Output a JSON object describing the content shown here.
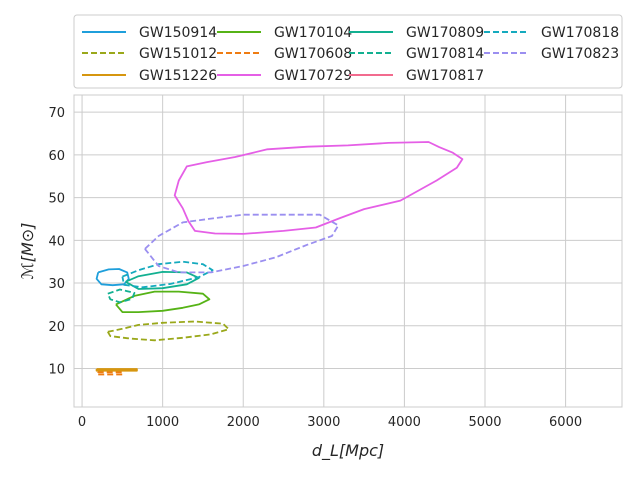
{
  "chart_data": {
    "type": "line",
    "title": "",
    "xlabel": "d_L[Mpc]",
    "ylabel": "ℳ[M⊙]",
    "xlim": [
      -100,
      6700
    ],
    "ylim": [
      1,
      74
    ],
    "xticks": [
      0,
      1000,
      2000,
      3000,
      4000,
      5000,
      6000
    ],
    "yticks": [
      10,
      20,
      30,
      40,
      50,
      60,
      70
    ],
    "grid": true,
    "legend_placement": "top-center",
    "series": [
      {
        "name": "GW150914",
        "color": "#1f9fdb",
        "dash": false,
        "points": [
          [
            200,
            32.5
          ],
          [
            330,
            33.2
          ],
          [
            460,
            33.3
          ],
          [
            560,
            32.5
          ],
          [
            580,
            31
          ],
          [
            520,
            29.7
          ],
          [
            380,
            29.5
          ],
          [
            240,
            29.7
          ],
          [
            180,
            31
          ],
          [
            200,
            32.5
          ]
        ]
      },
      {
        "name": "GW151012",
        "color": "#9aa81a",
        "dash": true,
        "points": [
          [
            320,
            18.6
          ],
          [
            500,
            19.3
          ],
          [
            700,
            20.2
          ],
          [
            1000,
            20.7
          ],
          [
            1400,
            21
          ],
          [
            1750,
            20.5
          ],
          [
            1820,
            19.2
          ],
          [
            1600,
            18
          ],
          [
            1250,
            17.2
          ],
          [
            900,
            16.6
          ],
          [
            600,
            17
          ],
          [
            350,
            17.6
          ],
          [
            320,
            18.6
          ]
        ]
      },
      {
        "name": "GW151226",
        "color": "#d6960f",
        "dash": false,
        "points": [
          [
            180,
            9.9
          ],
          [
            680,
            9.9
          ],
          [
            680,
            9.5
          ],
          [
            180,
            9.5
          ],
          [
            180,
            9.9
          ]
        ]
      },
      {
        "name": "GW170104",
        "color": "#56b316",
        "dash": false,
        "points": [
          [
            420,
            25
          ],
          [
            650,
            27
          ],
          [
            900,
            28
          ],
          [
            1200,
            28
          ],
          [
            1500,
            27.5
          ],
          [
            1580,
            26.2
          ],
          [
            1450,
            25
          ],
          [
            1250,
            24.2
          ],
          [
            1000,
            23.5
          ],
          [
            700,
            23.2
          ],
          [
            500,
            23.2
          ],
          [
            420,
            25
          ]
        ]
      },
      {
        "name": "GW170608",
        "color": "#ef7c12",
        "dash": true,
        "points": [
          [
            200,
            8.6
          ],
          [
            500,
            8.6
          ],
          [
            500,
            9.1
          ],
          [
            200,
            9.1
          ],
          [
            200,
            8.6
          ]
        ]
      },
      {
        "name": "GW170729",
        "color": "#e55fe6",
        "dash": false,
        "points": [
          [
            1250,
            47.5
          ],
          [
            1150,
            50.5
          ],
          [
            1200,
            54
          ],
          [
            1300,
            57.3
          ],
          [
            1550,
            58.3
          ],
          [
            1900,
            59.5
          ],
          [
            2300,
            61.3
          ],
          [
            2800,
            61.9
          ],
          [
            3300,
            62.2
          ],
          [
            3800,
            62.8
          ],
          [
            4300,
            63
          ],
          [
            4430,
            61.8
          ],
          [
            4600,
            60.5
          ],
          [
            4720,
            59
          ],
          [
            4650,
            57
          ],
          [
            4400,
            54
          ],
          [
            3950,
            49.3
          ],
          [
            3500,
            47.3
          ],
          [
            3200,
            45.2
          ],
          [
            2900,
            43
          ],
          [
            2500,
            42.2
          ],
          [
            2000,
            41.5
          ],
          [
            1650,
            41.6
          ],
          [
            1400,
            42.2
          ],
          [
            1320,
            44.5
          ],
          [
            1250,
            47.5
          ]
        ]
      },
      {
        "name": "GW170809",
        "color": "#12b091",
        "dash": false,
        "points": [
          [
            540,
            30.3
          ],
          [
            700,
            31.6
          ],
          [
            1000,
            32.6
          ],
          [
            1300,
            32.5
          ],
          [
            1450,
            31.2
          ],
          [
            1300,
            29.7
          ],
          [
            1000,
            28.8
          ],
          [
            700,
            28.6
          ],
          [
            540,
            30.3
          ]
        ]
      },
      {
        "name": "GW170814",
        "color": "#12b091",
        "dash": true,
        "points": [
          [
            320,
            27.5
          ],
          [
            470,
            28.5
          ],
          [
            650,
            27.7
          ],
          [
            620,
            26.3
          ],
          [
            470,
            25.5
          ],
          [
            350,
            26.2
          ],
          [
            320,
            27.5
          ]
        ]
      },
      {
        "name": "GW170817",
        "color": "#f26b8e",
        "dash": false,
        "points": []
      },
      {
        "name": "GW170818",
        "color": "#15aabe",
        "dash": true,
        "points": [
          [
            500,
            31.5
          ],
          [
            700,
            33
          ],
          [
            950,
            34.4
          ],
          [
            1250,
            35
          ],
          [
            1500,
            34.4
          ],
          [
            1620,
            33
          ],
          [
            1450,
            31.4
          ],
          [
            1100,
            29.8
          ],
          [
            750,
            29
          ],
          [
            520,
            29.6
          ],
          [
            500,
            31.5
          ]
        ]
      },
      {
        "name": "GW170823",
        "color": "#9b8ff0",
        "dash": true,
        "points": [
          [
            780,
            38
          ],
          [
            950,
            41
          ],
          [
            1250,
            44.2
          ],
          [
            1650,
            45.2
          ],
          [
            2000,
            46
          ],
          [
            2500,
            46
          ],
          [
            2950,
            46
          ],
          [
            3180,
            43.5
          ],
          [
            3100,
            41
          ],
          [
            2800,
            39
          ],
          [
            2400,
            36
          ],
          [
            2000,
            34
          ],
          [
            1600,
            32.5
          ],
          [
            1200,
            32.5
          ],
          [
            950,
            34
          ],
          [
            780,
            38
          ]
        ]
      }
    ]
  }
}
